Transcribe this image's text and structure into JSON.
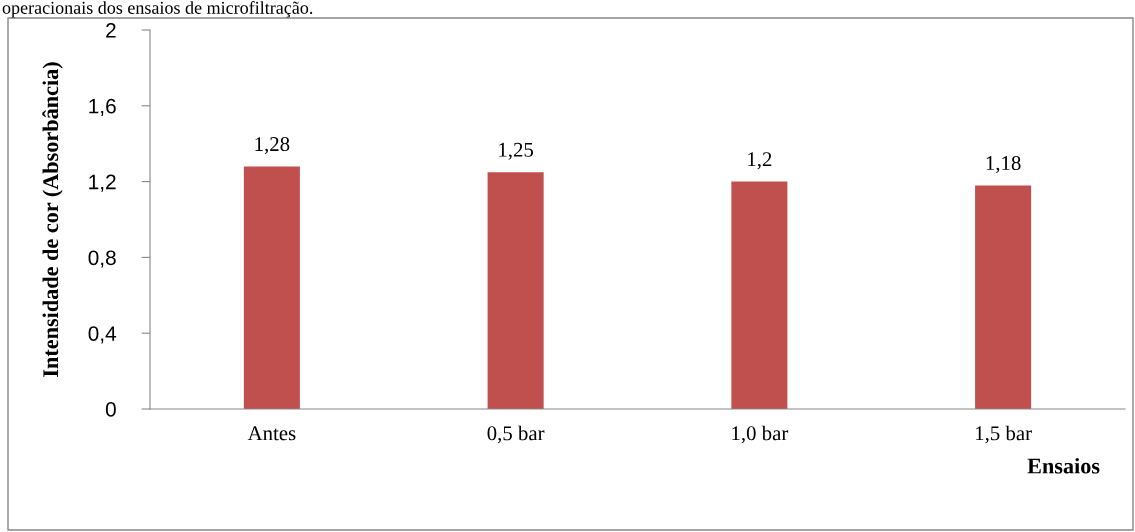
{
  "chart_data": {
    "type": "bar",
    "categories": [
      "Antes",
      "0,5 bar",
      "1,0 bar",
      "1,5 bar"
    ],
    "values": [
      1.28,
      1.25,
      1.2,
      1.18
    ],
    "value_labels": [
      "1,28",
      "1,25",
      "1,2",
      "1,18"
    ],
    "color": "#c0504d",
    "xlabel": "Ensaios",
    "ylabel": "Intensidade de cor (Absorbância)",
    "ylim": [
      0,
      2
    ],
    "yticks": [
      0,
      {
        "value": 0.4,
        "label": "0,4"
      },
      {
        "value": 0.8,
        "label": "0,8"
      },
      {
        "value": 1.2,
        "label": "1,2"
      },
      {
        "value": 1.6,
        "label": "1,6"
      },
      2
    ],
    "grid": false,
    "legend": false,
    "annotations": [
      "operacionais dos ensaios de microfiltração."
    ]
  }
}
